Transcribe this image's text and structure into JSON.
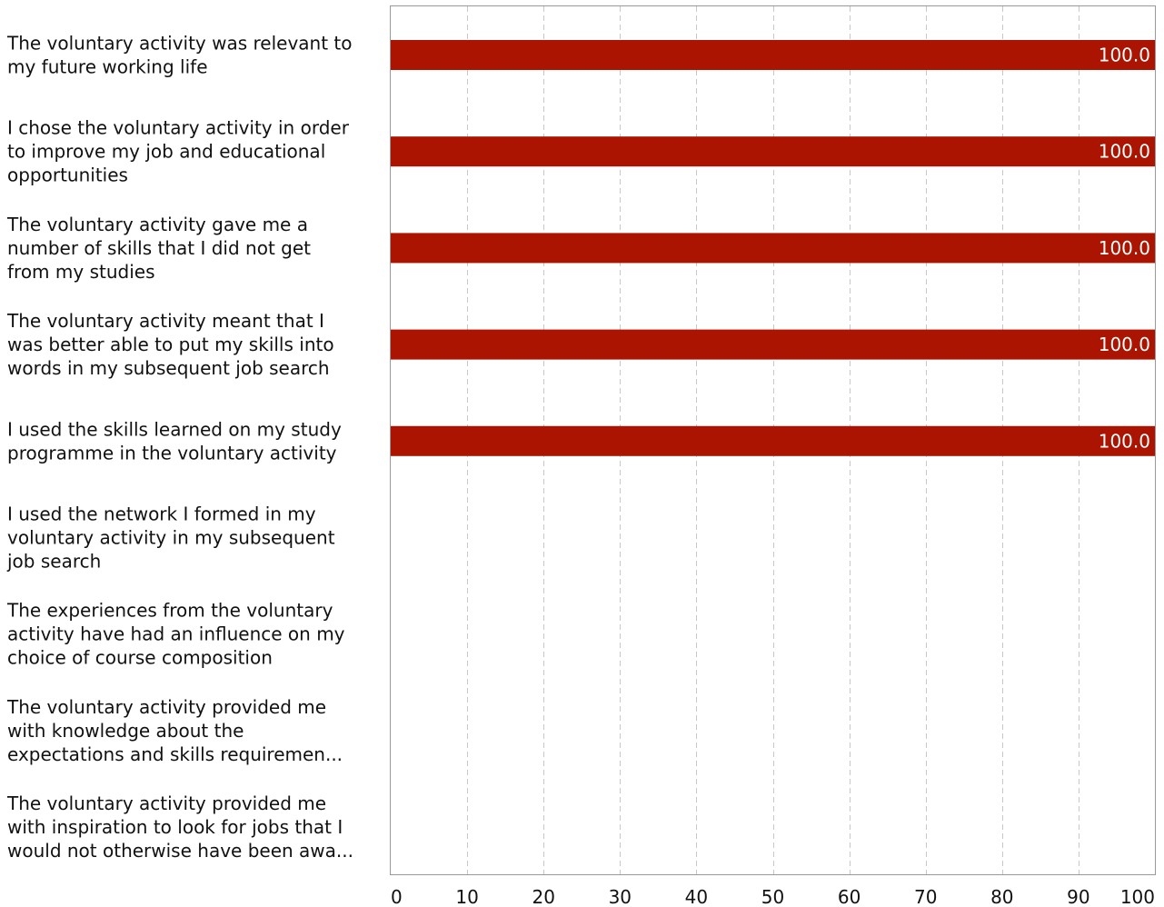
{
  "chart_data": {
    "type": "bar",
    "orientation": "horizontal",
    "categories": [
      [
        "The voluntary activity was relevant to",
        "my future working life"
      ],
      [
        "I chose the voluntary activity in order",
        "to improve my job and educational",
        "opportunities"
      ],
      [
        "The voluntary activity gave me a",
        "number of skills that I did not get",
        "from my studies"
      ],
      [
        "The voluntary activity meant that I",
        "was better able to put my skills into",
        "words in my subsequent job search"
      ],
      [
        "I used the skills learned on my study",
        "programme in the voluntary activity"
      ],
      [
        "I used the network I formed in my",
        "voluntary activity in my subsequent",
        "job search"
      ],
      [
        "The experiences from the voluntary",
        "activity have had an influence on my",
        "choice of course composition"
      ],
      [
        "The voluntary activity provided me",
        "with knowledge about the",
        "expectations and skills requiremen..."
      ],
      [
        "The voluntary activity provided me",
        "with inspiration to look for jobs that I",
        "would not otherwise have been awa..."
      ]
    ],
    "values": [
      100.0,
      100.0,
      100.0,
      100.0,
      100.0,
      null,
      null,
      null,
      null
    ],
    "data_labels": [
      "100.0",
      "100.0",
      "100.0",
      "100.0",
      "100.0",
      "",
      "",
      "",
      ""
    ],
    "xlim": [
      0,
      100
    ],
    "xticks": [
      0,
      10,
      20,
      30,
      40,
      50,
      60,
      70,
      80,
      90,
      100
    ],
    "title": "",
    "xlabel": "",
    "ylabel": "",
    "grid": "vertical-dashed",
    "legend": "none",
    "colors": {
      "bar": "#aa1400",
      "grid": "#c8c8c8",
      "frame": "#999999",
      "text": "#111111",
      "data_label": "#ffffff"
    }
  }
}
